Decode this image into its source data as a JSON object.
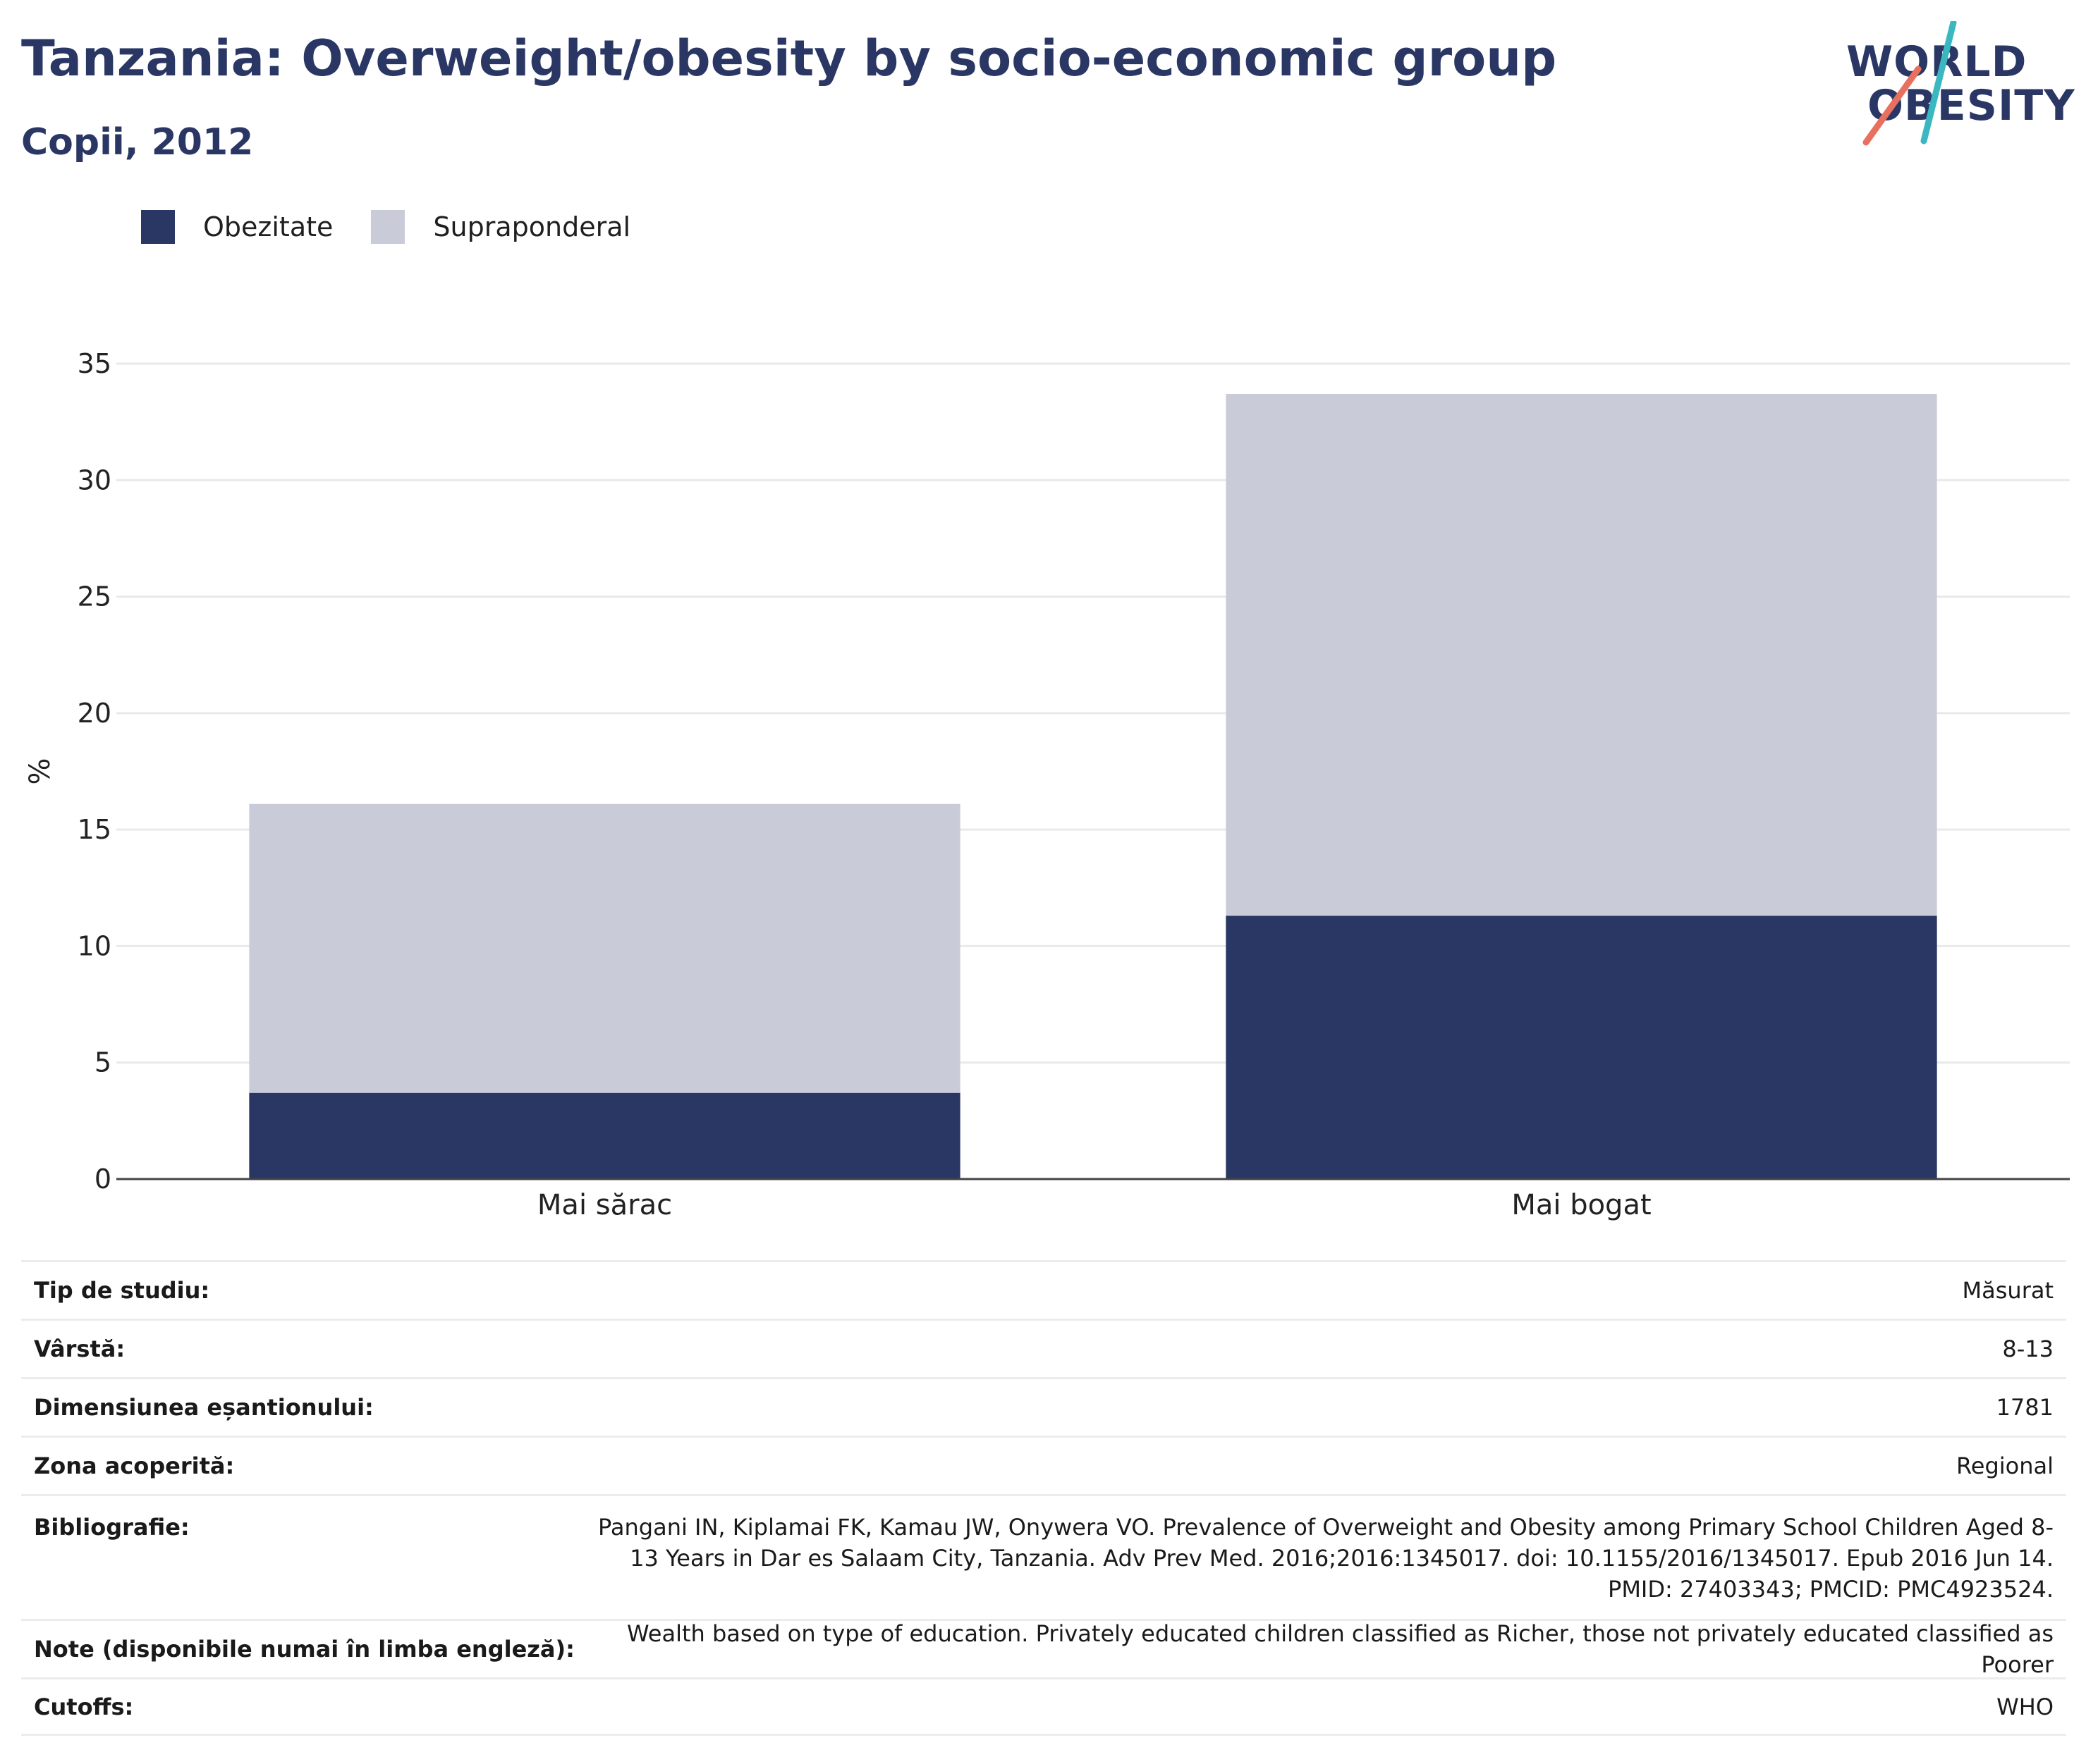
{
  "header": {
    "title": "Tanzania: Overweight/obesity by socio-economic group",
    "subtitle": "Copii, 2012"
  },
  "logo": {
    "line1": "WORLD",
    "line2": "OBESITY",
    "accent_colors": [
      "#3bb7c1",
      "#e8705f"
    ]
  },
  "legend": {
    "items": [
      {
        "label": "Obezitate",
        "color": "#2a3764"
      },
      {
        "label": "Supraponderal",
        "color": "#c9ccd8"
      }
    ]
  },
  "chart_data": {
    "type": "bar",
    "stacked": true,
    "categories": [
      "Mai sărac",
      "Mai bogat"
    ],
    "series": [
      {
        "name": "Obezitate",
        "values": [
          3.7,
          11.3
        ],
        "color": "#2a3764"
      },
      {
        "name": "Supraponderal",
        "values": [
          12.4,
          22.4
        ],
        "color": "#c9ccd8"
      }
    ],
    "ylabel": "%",
    "ylim": [
      0,
      35
    ],
    "yticks": [
      0,
      5,
      10,
      15,
      20,
      25,
      30,
      35
    ],
    "grid": true,
    "legend_position": "top-left"
  },
  "table": {
    "rows": [
      {
        "key": "Tip de studiu:",
        "value": "Măsurat"
      },
      {
        "key": "Vârstă:",
        "value": "8-13"
      },
      {
        "key": "Dimensiunea eșantionului:",
        "value": "1781"
      },
      {
        "key": "Zona acoperită:",
        "value": "Regional"
      },
      {
        "key": "Bibliografie:",
        "value": "Pangani IN, Kiplamai FK, Kamau JW, Onywera VO. Prevalence of Overweight and Obesity among Primary School Children Aged 8-13 Years in Dar es Salaam City, Tanzania. Adv Prev Med. 2016;2016:1345017. doi: 10.1155/2016/1345017. Epub 2016 Jun 14. PMID: 27403343; PMCID: PMC4923524."
      },
      {
        "key": "Note (disponibile numai în limba engleză):",
        "value": "Wealth based on type of education. Privately educated children classified as Richer, those not privately educated classified as Poorer"
      },
      {
        "key": "Cutoffs:",
        "value": "WHO"
      }
    ]
  }
}
